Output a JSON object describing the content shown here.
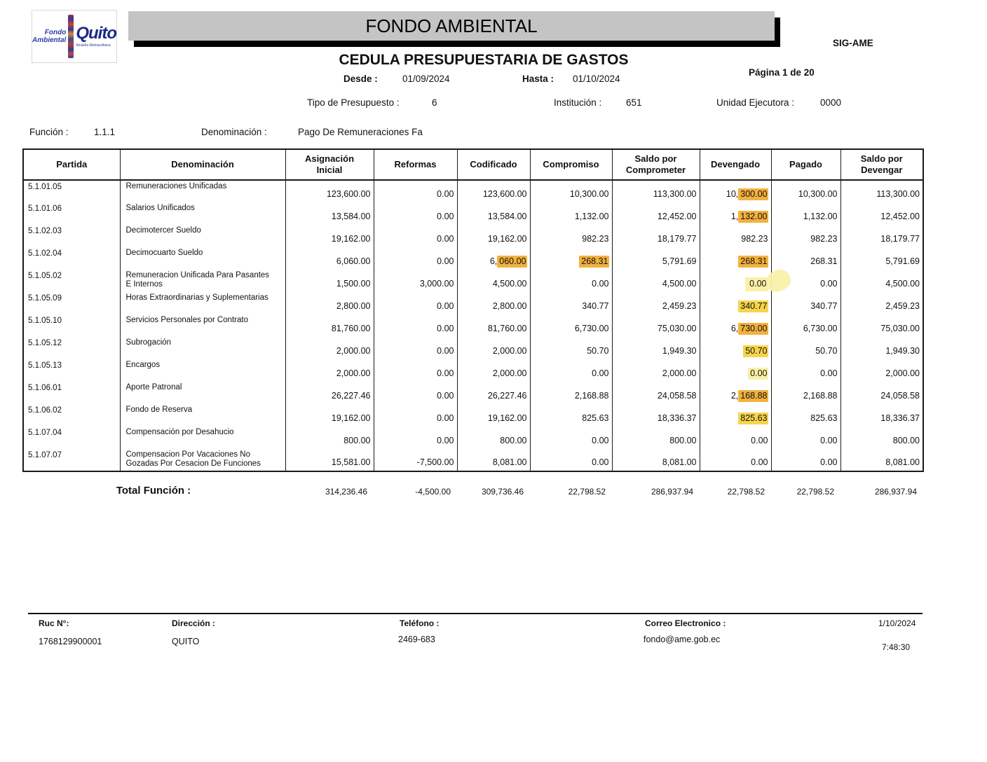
{
  "logo": {
    "line1": "Fondo",
    "line2": "Ambiental",
    "brand": "Quito",
    "brand_sub": "Alcaldía Metropolitana"
  },
  "banner": {
    "title": "FONDO AMBIENTAL"
  },
  "doc": {
    "system": "SIG-AME",
    "title": "CEDULA PRESUPUESTARIA DE GASTOS",
    "desde_label": "Desde :",
    "desde": "01/09/2024",
    "hasta_label": "Hasta :",
    "hasta": "01/10/2024",
    "pagina": "Página 1 de 20",
    "tipo_label": "Tipo de Presupuesto :",
    "tipo": "6",
    "institucion_label": "Institución :",
    "institucion": "651",
    "unidad_label": "Unidad Ejecutora :",
    "unidad": "0000",
    "funcion_label": "Función :",
    "funcion": "1.1.1",
    "denominacion_label": "Denominación :",
    "denominacion": "Pago De Remuneraciones Fa"
  },
  "highlight_colors": {
    "orange": "#F2B13D",
    "yellow": "#F7D44A",
    "pale": "#FAF0A8"
  },
  "table": {
    "columns": [
      "Partida",
      "Denominación",
      "Asignación\nInicial",
      "Reformas",
      "Codificado",
      "Compromiso",
      "Saldo por\nComprometer",
      "Devengado",
      "Pagado",
      "Saldo por\nDevengar"
    ],
    "rows": [
      {
        "partida": "5.1.01.05",
        "denominacion": "Remuneraciones Unificadas",
        "values": [
          "123,600.00",
          "0.00",
          "123,600.00",
          "10,300.00",
          "113,300.00",
          "10,300.00",
          "10,300.00",
          "113,300.00"
        ],
        "hl": [
          {
            "col": 5,
            "part": "300.00",
            "color": "orange"
          }
        ]
      },
      {
        "partida": "5.1.01.06",
        "denominacion": "Salarios Unificados",
        "values": [
          "13,584.00",
          "0.00",
          "13,584.00",
          "1,132.00",
          "12,452.00",
          "1,132.00",
          "1,132.00",
          "12,452.00"
        ],
        "hl": [
          {
            "col": 5,
            "part": "132.00",
            "color": "orange"
          }
        ]
      },
      {
        "partida": "5.1.02.03",
        "denominacion": "Decimotercer Sueldo",
        "values": [
          "19,162.00",
          "0.00",
          "19,162.00",
          "982.23",
          "18,179.77",
          "982.23",
          "982.23",
          "18,179.77"
        ],
        "hl": []
      },
      {
        "partida": "5.1.02.04",
        "denominacion": "Decimocuarto Sueldo",
        "values": [
          "6,060.00",
          "0.00",
          "6,060.00",
          "268.31",
          "5,791.69",
          "268.31",
          "268.31",
          "5,791.69"
        ],
        "hl": [
          {
            "col": 2,
            "part": "060.00",
            "color": "orange"
          },
          {
            "col": 3,
            "part": "268.31",
            "color": "orange"
          },
          {
            "col": 5,
            "part": "268.31",
            "color": "orange"
          }
        ]
      },
      {
        "partida": "5.1.05.02",
        "denominacion": "Remuneracion Unificada Para Pasantes\nE  Internos",
        "values": [
          "1,500.00",
          "3,000.00",
          "4,500.00",
          "0.00",
          "4,500.00",
          "0.00",
          "0.00",
          "4,500.00"
        ],
        "hl": [
          {
            "col": 5,
            "part": "0.00",
            "color": "pale",
            "blob": true
          }
        ]
      },
      {
        "partida": "5.1.05.09",
        "denominacion": "Horas Extraordinarias y Suplementarias",
        "values": [
          "2,800.00",
          "0.00",
          "2,800.00",
          "340.77",
          "2,459.23",
          "340.77",
          "340.77",
          "2,459.23"
        ],
        "hl": [
          {
            "col": 5,
            "part": "340.77",
            "color": "yellow"
          }
        ]
      },
      {
        "partida": "5.1.05.10",
        "denominacion": "Servicios Personales por Contrato",
        "values": [
          "81,760.00",
          "0.00",
          "81,760.00",
          "6,730.00",
          "75,030.00",
          "6,730.00",
          "6,730.00",
          "75,030.00"
        ],
        "hl": [
          {
            "col": 5,
            "part": "730.00",
            "color": "orange"
          }
        ]
      },
      {
        "partida": "5.1.05.12",
        "denominacion": "Subrogación",
        "values": [
          "2,000.00",
          "0.00",
          "2,000.00",
          "50.70",
          "1,949.30",
          "50.70",
          "50.70",
          "1,949.30"
        ],
        "hl": [
          {
            "col": 5,
            "part": "50.70",
            "color": "yellow"
          }
        ]
      },
      {
        "partida": "5.1.05.13",
        "denominacion": "Encargos",
        "values": [
          "2,000.00",
          "0.00",
          "2,000.00",
          "0.00",
          "2,000.00",
          "0.00",
          "0.00",
          "2,000.00"
        ],
        "hl": [
          {
            "col": 5,
            "part": "0.00",
            "color": "pale"
          }
        ]
      },
      {
        "partida": "5.1.06.01",
        "denominacion": "Aporte Patronal",
        "values": [
          "26,227.46",
          "0.00",
          "26,227.46",
          "2,168.88",
          "24,058.58",
          "2,168.88",
          "2,168.88",
          "24,058.58"
        ],
        "hl": [
          {
            "col": 5,
            "part": "168.88",
            "color": "orange"
          }
        ]
      },
      {
        "partida": "5.1.06.02",
        "denominacion": "Fondo de Reserva",
        "values": [
          "19,162.00",
          "0.00",
          "19,162.00",
          "825.63",
          "18,336.37",
          "825.63",
          "825.63",
          "18,336.37"
        ],
        "hl": [
          {
            "col": 5,
            "part": "825.63",
            "color": "yellow"
          }
        ]
      },
      {
        "partida": "5.1.07.04",
        "denominacion": "Compensación por Desahucio",
        "values": [
          "800.00",
          "0.00",
          "800.00",
          "0.00",
          "800.00",
          "0.00",
          "0.00",
          "800.00"
        ],
        "hl": []
      },
      {
        "partida": "5.1.07.07",
        "denominacion": "Compensacion Por Vacaciones No\nGozadas Por Cesacion De Funciones",
        "values": [
          "15,581.00",
          "-7,500.00",
          "8,081.00",
          "0.00",
          "8,081.00",
          "0.00",
          "0.00",
          "8,081.00"
        ],
        "hl": []
      }
    ],
    "total_label": "Total Función :",
    "totals": [
      "314,236.46",
      "-4,500.00",
      "309,736.46",
      "22,798.52",
      "286,937.94",
      "22,798.52",
      "22,798.52",
      "286,937.94"
    ]
  },
  "footer": {
    "ruc_label": "Ruc N°:",
    "ruc": "1768129900001",
    "direccion_label": "Dirección :",
    "direccion": "QUITO",
    "telefono_label": "Teléfono :",
    "telefono": "2469-683",
    "correo_label": "Correo Electronico :",
    "correo": "fondo@ame.gob.ec",
    "fecha": "1/10/2024",
    "hora": "7:48:30"
  }
}
